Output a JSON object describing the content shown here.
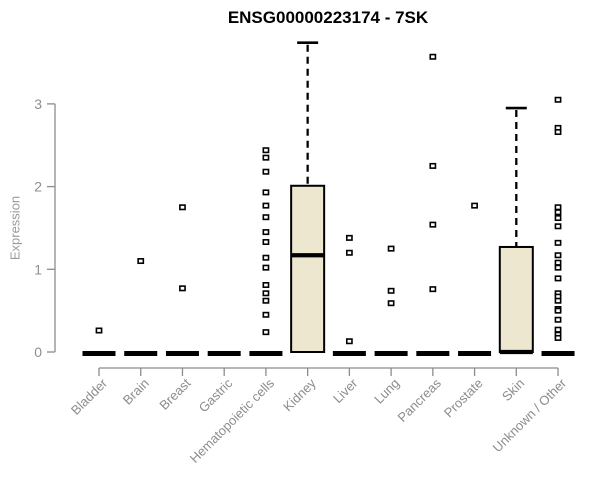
{
  "title": "ENSG00000223174 - 7SK",
  "colors": {
    "background": "#ffffff",
    "title_text": "#000000",
    "axis_line": "#8c8c8c",
    "tick_label": "#8b8f96",
    "category_label": "#8c8c8c",
    "y_axis_title": "#9a9a9a",
    "box_fill": "#ede7d0",
    "box_stroke": "#000000",
    "median_line": "#000000",
    "outlier_fill": "#ffffff",
    "outlier_stroke": "#000000"
  },
  "chart_data": {
    "type": "boxplot",
    "title": "ENSG00000223174 - 7SK",
    "xlabel": "",
    "ylabel": "Expression",
    "ylim": [
      0,
      3.8
    ],
    "yticks": [
      0,
      1,
      2,
      3
    ],
    "grid": false,
    "legend": "none",
    "categories": [
      "Bladder",
      "Brain",
      "Breast",
      "Gastric",
      "Hematopoietic cells",
      "Kidney",
      "Liver",
      "Lung",
      "Pancreas",
      "Prostate",
      "Skin",
      "Unknown / Other"
    ],
    "series": [
      {
        "name": "Bladder",
        "q1": 0,
        "median": 0,
        "q3": 0,
        "whisker_low": 0,
        "whisker_high": 0,
        "outliers": [
          0.26
        ]
      },
      {
        "name": "Brain",
        "q1": 0,
        "median": 0,
        "q3": 0,
        "whisker_low": 0,
        "whisker_high": 0,
        "outliers": [
          1.1
        ]
      },
      {
        "name": "Breast",
        "q1": 0,
        "median": 0,
        "q3": 0,
        "whisker_low": 0,
        "whisker_high": 0,
        "outliers": [
          1.75,
          0.77
        ]
      },
      {
        "name": "Gastric",
        "q1": 0,
        "median": 0,
        "q3": 0,
        "whisker_low": 0,
        "whisker_high": 0,
        "outliers": []
      },
      {
        "name": "Hematopoietic cells",
        "q1": 0,
        "median": 0,
        "q3": 0,
        "whisker_low": 0,
        "whisker_high": 0,
        "outliers": [
          2.44,
          2.35,
          2.18,
          1.93,
          1.77,
          1.63,
          1.45,
          1.33,
          1.14,
          1.02,
          0.81,
          0.71,
          0.62,
          0.45,
          0.24
        ]
      },
      {
        "name": "Kidney",
        "q1": 0,
        "median": 1.17,
        "q3": 2.01,
        "whisker_low": 0,
        "whisker_high": 3.74,
        "outliers": []
      },
      {
        "name": "Liver",
        "q1": 0,
        "median": 0,
        "q3": 0,
        "whisker_low": 0,
        "whisker_high": 0,
        "outliers": [
          1.38,
          1.2,
          0.13
        ]
      },
      {
        "name": "Lung",
        "q1": 0,
        "median": 0,
        "q3": 0,
        "whisker_low": 0,
        "whisker_high": 0,
        "outliers": [
          1.25,
          0.74,
          0.59
        ]
      },
      {
        "name": "Pancreas",
        "q1": 0,
        "median": 0,
        "q3": 0,
        "whisker_low": 0,
        "whisker_high": 0,
        "outliers": [
          3.57,
          2.25,
          1.54,
          0.76
        ]
      },
      {
        "name": "Prostate",
        "q1": 0,
        "median": 0,
        "q3": 0,
        "whisker_low": 0,
        "whisker_high": 0,
        "outliers": [
          1.77
        ]
      },
      {
        "name": "Skin",
        "q1": 0,
        "median": 0,
        "q3": 1.27,
        "whisker_low": 0,
        "whisker_high": 2.95,
        "outliers": []
      },
      {
        "name": "Unknown / Other",
        "q1": 0,
        "median": 0,
        "q3": 0,
        "whisker_low": 0,
        "whisker_high": 0,
        "outliers": [
          3.05,
          2.71,
          2.66,
          1.75,
          1.69,
          1.62,
          1.52,
          1.32,
          1.17,
          1.08,
          1.02,
          0.89,
          0.71,
          0.67,
          0.62,
          0.52,
          0.5,
          0.39,
          0.27,
          0.21,
          0.17
        ]
      }
    ]
  }
}
